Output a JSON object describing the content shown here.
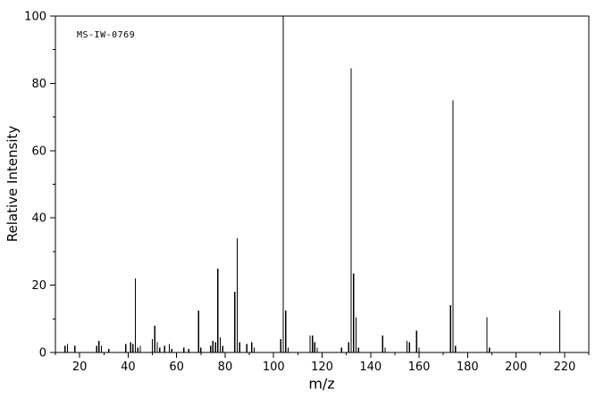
{
  "chart_data": {
    "type": "bar",
    "subtype": "mass-spectrum",
    "title": "",
    "label": "MS-IW-0769",
    "xlabel": "m/z",
    "ylabel": "Relative Intensity",
    "xlim": [
      10,
      230
    ],
    "ylim": [
      0,
      100
    ],
    "x_ticks": [
      20,
      40,
      60,
      80,
      100,
      120,
      140,
      160,
      180,
      200,
      220
    ],
    "y_ticks": [
      0,
      20,
      40,
      60,
      80,
      100
    ],
    "minor_tick_step_x": 10,
    "minor_tick_step_y": 10,
    "grid": false,
    "legend": false,
    "bar_color": "#000000",
    "axis_color": "#000000",
    "background_color": "#ffffff",
    "peaks": [
      [
        14,
        2
      ],
      [
        15,
        2.5
      ],
      [
        18,
        2
      ],
      [
        27,
        2
      ],
      [
        28,
        3.5
      ],
      [
        29,
        2
      ],
      [
        32,
        1
      ],
      [
        39,
        2.5
      ],
      [
        41,
        3
      ],
      [
        42,
        2.5
      ],
      [
        43,
        22
      ],
      [
        44,
        1.5
      ],
      [
        45,
        2
      ],
      [
        50,
        4
      ],
      [
        51,
        8
      ],
      [
        52,
        3
      ],
      [
        53,
        1.5
      ],
      [
        55,
        2
      ],
      [
        57,
        2.5
      ],
      [
        58,
        1
      ],
      [
        63,
        1.5
      ],
      [
        65,
        1
      ],
      [
        69,
        12.5
      ],
      [
        70,
        1.5
      ],
      [
        74,
        2
      ],
      [
        75,
        3.5
      ],
      [
        76,
        3
      ],
      [
        77,
        25
      ],
      [
        78,
        4.5
      ],
      [
        79,
        2
      ],
      [
        84,
        18
      ],
      [
        85,
        34
      ],
      [
        86,
        3
      ],
      [
        89,
        2.5
      ],
      [
        91,
        3
      ],
      [
        92,
        1.5
      ],
      [
        103,
        4
      ],
      [
        104,
        100
      ],
      [
        105,
        12.5
      ],
      [
        106,
        1.5
      ],
      [
        115,
        5
      ],
      [
        116,
        5
      ],
      [
        117,
        3
      ],
      [
        118,
        1.5
      ],
      [
        128,
        1.5
      ],
      [
        131,
        3
      ],
      [
        132,
        84.5
      ],
      [
        133,
        23.5
      ],
      [
        134,
        10.5
      ],
      [
        135,
        1.5
      ],
      [
        145,
        5
      ],
      [
        146,
        1.5
      ],
      [
        155,
        3.5
      ],
      [
        156,
        3
      ],
      [
        159,
        6.5
      ],
      [
        160,
        1.5
      ],
      [
        173,
        14
      ],
      [
        174,
        75
      ],
      [
        175,
        2
      ],
      [
        188,
        10.5
      ],
      [
        189,
        1.5
      ],
      [
        218,
        12.5
      ]
    ]
  }
}
